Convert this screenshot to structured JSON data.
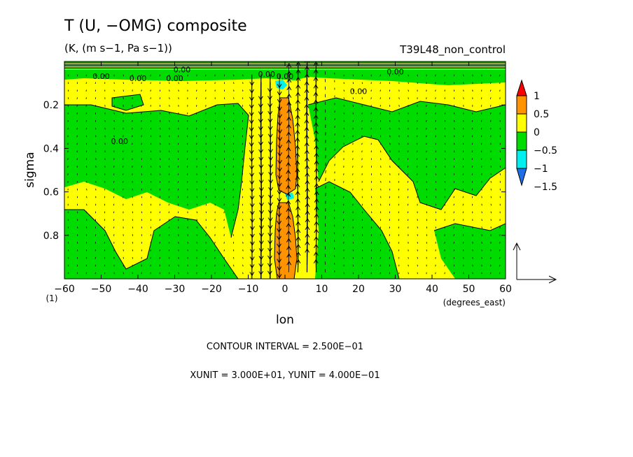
{
  "header": {
    "title": "T (U, −OMG) composite",
    "units": "(K, (m s−1, Pa s−1))",
    "experiment": "T39L48_non_control"
  },
  "colors": {
    "c_neg2": "#1e6fe6",
    "c_neg15": "#00f0f0",
    "c_neg1": "#00dc00",
    "c_0": "#ffff00",
    "c_pos05": "#ff9400",
    "c_pos1": "#ff0000"
  },
  "chart_data": {
    "type": "heatmap",
    "xlabel": "lon",
    "xunit_label": "(degrees_east)",
    "ylabel": "sigma",
    "xlim": [
      -60,
      60
    ],
    "ylim": [
      1.0,
      0.0
    ],
    "x_ticks": [
      "−60",
      "−50",
      "−40",
      "−30",
      "−20",
      "−10",
      "0",
      "10",
      "20",
      "30",
      "40",
      "50",
      "60"
    ],
    "x_tick_values": [
      -60,
      -50,
      -40,
      -30,
      -20,
      -10,
      0,
      10,
      20,
      30,
      40,
      50,
      60
    ],
    "y_ticks": [
      "0.2",
      "0.4",
      "0.6",
      "0.8"
    ],
    "y_tick_values": [
      0.2,
      0.4,
      0.6,
      0.8
    ],
    "corner_label": "(1)",
    "contour_interval": 0.25,
    "contour_labels": [
      "0.00",
      "0.00",
      "0.00",
      "0.00",
      "0.00",
      "0.00",
      "0.00",
      "0.00",
      "0.00"
    ],
    "colorbar": {
      "levels": [
        "1",
        "0.5",
        "0",
        "−0.5",
        "−1",
        "−1.5"
      ],
      "level_values": [
        1,
        0.5,
        0,
        -0.5,
        -1,
        -1.5
      ]
    },
    "field_summary": {
      "background": "mixed weak positive (0 to 0.5) and weak negative (-0.5 to 0) anomalies",
      "center_column": "warm anomaly (0.5 to 1) along lon 0 from sigma 0.2 to 1.0",
      "cold_spots": "small anomalies below -1 near lon -2, sigma 0.1 and sigma 0.63"
    },
    "vector_reference": {
      "xunit": 30.0,
      "yunit": 0.4
    }
  },
  "footer": {
    "contour_interval_text": "CONTOUR INTERVAL = 2.500E−01",
    "units_text": "XUNIT = 3.000E+01, YUNIT = 4.000E−01"
  }
}
